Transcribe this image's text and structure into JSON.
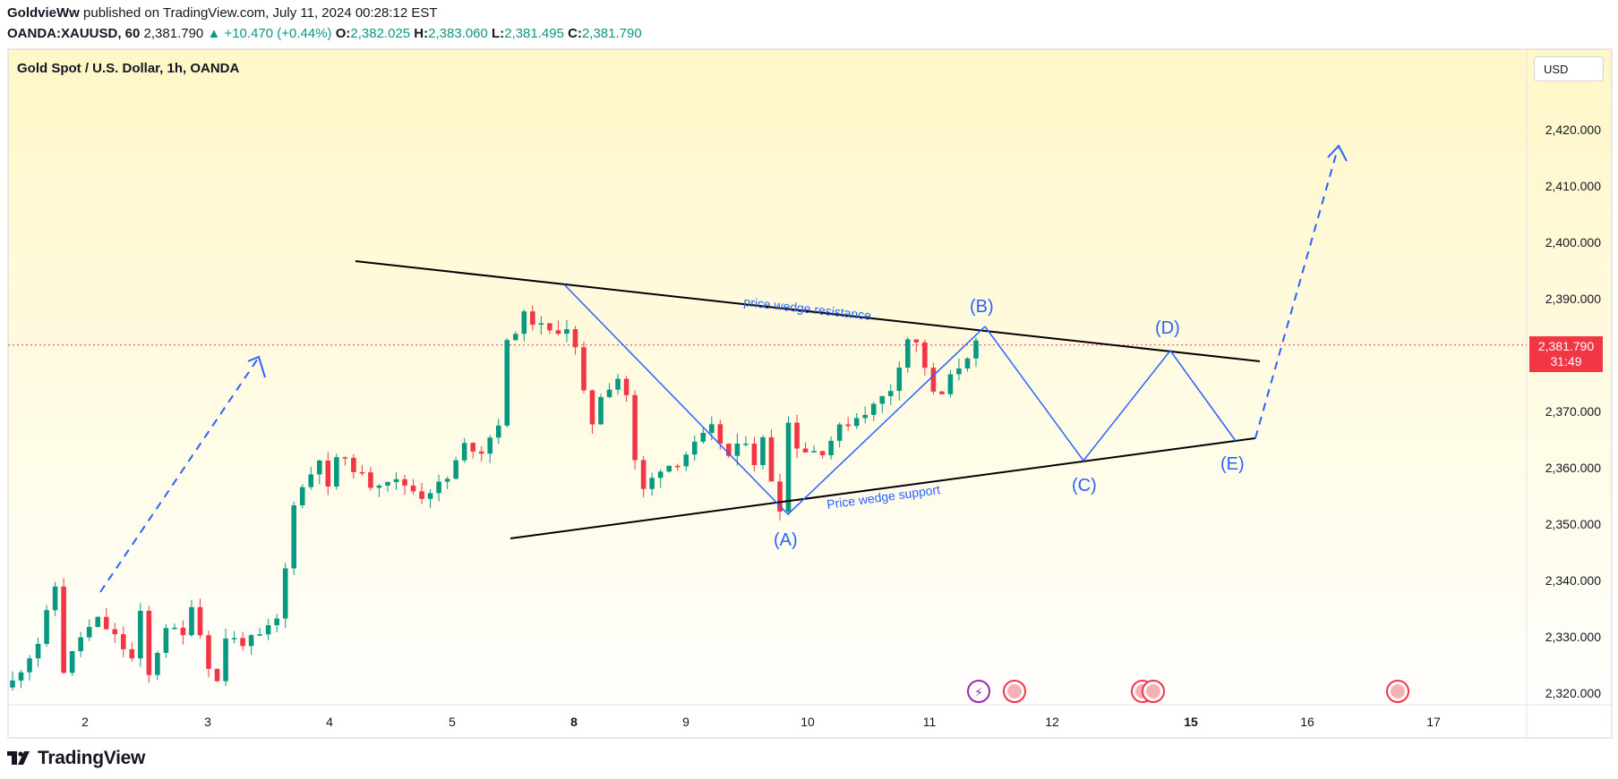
{
  "header": {
    "author": "GoldvieWw",
    "published": "published on TradingView.com, July 11, 2024 00:28:12 EST",
    "symbol": "OANDA:XAUUSD, 60",
    "last": "2,381.790",
    "change": "▲ +10.470 (+0.44%)",
    "o_label": "O:",
    "o": "2,382.025",
    "h_label": "H:",
    "h": "2,383.060",
    "l_label": "L:",
    "l": "2,381.495",
    "c_label": "C:",
    "c": "2,381.790"
  },
  "chart_title": "Gold Spot / U.S. Dollar, 1h, OANDA",
  "currency_button": "USD",
  "price_tag": {
    "price": "2,381.790",
    "countdown": "31:49"
  },
  "footer_brand": "TradingView",
  "colors": {
    "up": "#089981",
    "down": "#f23645",
    "annotation": "#2962ff",
    "line": "#000000"
  },
  "chart_data": {
    "type": "candlestick",
    "title": "Gold Spot / U.S. Dollar, 1h, OANDA",
    "ylim": [
      2316,
      2431
    ],
    "y_ticks": [
      2320,
      2330,
      2340,
      2350,
      2360,
      2370,
      2380,
      2390,
      2400,
      2410,
      2420
    ],
    "y_tick_labels": [
      "2,320.000",
      "2,330.000",
      "2,340.000",
      "2,350.000",
      "2,360.000",
      "2,370.000",
      "2,380.000",
      "2,390.000",
      "2,400.000",
      "2,410.000",
      "2,420.000"
    ],
    "x_tick_labels": [
      "2",
      "3",
      "4",
      "5",
      "8",
      "9",
      "10",
      "11",
      "12",
      "15",
      "16",
      "17"
    ],
    "bold_x_ticks": [
      "8",
      "15"
    ],
    "price_series": [
      [
        0,
        2322
      ],
      [
        3,
        2329
      ],
      [
        5,
        2339
      ],
      [
        6,
        2324
      ],
      [
        8,
        2330
      ],
      [
        10,
        2333
      ],
      [
        12,
        2330
      ],
      [
        14,
        2326
      ],
      [
        15,
        2334
      ],
      [
        16,
        2323
      ],
      [
        18,
        2332
      ],
      [
        20,
        2330
      ],
      [
        21,
        2336
      ],
      [
        23,
        2325
      ],
      [
        24,
        2322
      ],
      [
        25,
        2330
      ],
      [
        27,
        2329
      ],
      [
        29,
        2330
      ],
      [
        31,
        2333
      ],
      [
        32,
        2342
      ],
      [
        33,
        2354
      ],
      [
        35,
        2359
      ],
      [
        36,
        2362
      ],
      [
        37,
        2356
      ],
      [
        38,
        2362
      ],
      [
        40,
        2360
      ],
      [
        42,
        2357
      ],
      [
        44,
        2358
      ],
      [
        46,
        2357
      ],
      [
        48,
        2355
      ],
      [
        51,
        2358
      ],
      [
        53,
        2364
      ],
      [
        55,
        2363
      ],
      [
        57,
        2368
      ],
      [
        58,
        2382
      ],
      [
        60,
        2387
      ],
      [
        61,
        2386
      ],
      [
        63,
        2384
      ],
      [
        65,
        2385
      ],
      [
        66,
        2381
      ],
      [
        67,
        2373
      ],
      [
        68,
        2368
      ],
      [
        69,
        2373
      ],
      [
        71,
        2376
      ],
      [
        72,
        2373
      ],
      [
        73,
        2361
      ],
      [
        74,
        2356
      ],
      [
        75,
        2358
      ],
      [
        76,
        2360
      ],
      [
        78,
        2361
      ],
      [
        80,
        2364
      ],
      [
        82,
        2367
      ],
      [
        84,
        2362
      ],
      [
        86,
        2365
      ],
      [
        87,
        2361
      ],
      [
        88,
        2365
      ],
      [
        89,
        2358
      ],
      [
        90,
        2353
      ],
      [
        91,
        2368
      ],
      [
        92,
        2364
      ],
      [
        93,
        2363
      ],
      [
        95,
        2363
      ],
      [
        97,
        2367
      ],
      [
        99,
        2369
      ],
      [
        101,
        2371
      ],
      [
        103,
        2374
      ],
      [
        105,
        2383
      ],
      [
        106,
        2382
      ],
      [
        107,
        2378
      ],
      [
        108,
        2373
      ],
      [
        109,
        2373
      ],
      [
        110,
        2376
      ],
      [
        111,
        2378
      ],
      [
        112,
        2380
      ],
      [
        113,
        2382
      ]
    ],
    "annotations": {
      "lines": [
        {
          "name": "price wedge resistance",
          "x": [
            "Jul 4 ~12:00",
            "Jul 15 ~18:00"
          ],
          "y": [
            2397,
            2379
          ]
        },
        {
          "name": "Price wedge support",
          "x": [
            "Jul 5 ~12:00",
            "Jul 15 ~18:00"
          ],
          "y": [
            2348,
            2365
          ]
        }
      ],
      "wave_labels": [
        {
          "label": "(A)",
          "y": 2351
        },
        {
          "label": "(B)",
          "y": 2384
        },
        {
          "label": "(C)",
          "y": 2361
        },
        {
          "label": "(D)",
          "y": 2380
        },
        {
          "label": "(E)",
          "y": 2365
        }
      ],
      "projection_target": 2417,
      "text": [
        "price wedge resistance",
        "Price wedge support"
      ]
    }
  }
}
